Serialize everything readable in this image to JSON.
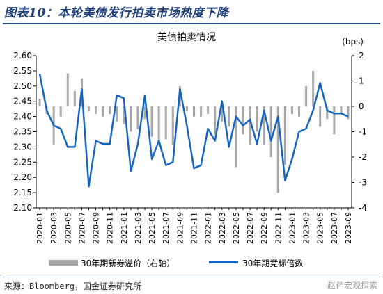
{
  "header": {
    "title": "图表10：本轮美债发行拍卖市场热度下降"
  },
  "footer": {
    "source": "来源：Bloomberg，国金证券研究所",
    "watermark": "赵伟宏观探索"
  },
  "colors": {
    "line": "#1565c0",
    "bar": "#a6a6a6",
    "title": "#1f3f7a",
    "axis": "#000000"
  },
  "chart_data": {
    "type": "bar+line",
    "title": "美债拍卖情况",
    "left_axis": {
      "ylim": [
        2.1,
        2.6
      ],
      "ticks": [
        2.1,
        2.15,
        2.2,
        2.25,
        2.3,
        2.35,
        2.4,
        2.45,
        2.5,
        2.55,
        2.6
      ]
    },
    "right_axis": {
      "unit": "(bps)",
      "ylim": [
        -4,
        2
      ],
      "ticks": [
        -4,
        -3,
        -2,
        -1,
        0,
        1,
        2
      ]
    },
    "x": [
      "2020-01",
      "2020-02",
      "2020-03",
      "2020-04",
      "2020-05",
      "2020-06",
      "2020-07",
      "2020-08",
      "2020-09",
      "2020-10",
      "2020-11",
      "2020-12",
      "2021-01",
      "2021-02",
      "2021-03",
      "2021-04",
      "2021-05",
      "2021-06",
      "2021-07",
      "2021-08",
      "2021-09",
      "2021-10",
      "2021-11",
      "2021-12",
      "2022-01",
      "2022-02",
      "2022-03",
      "2022-04",
      "2022-05",
      "2022-06",
      "2022-07",
      "2022-08",
      "2022-09",
      "2022-10",
      "2022-11",
      "2022-12",
      "2023-01",
      "2023-02",
      "2023-03",
      "2023-04",
      "2023-05",
      "2023-06",
      "2023-07",
      "2023-08",
      "2023-09"
    ],
    "x_tick_labels": [
      "2020-01",
      "2020-03",
      "2020-05",
      "2020-07",
      "2020-09",
      "2020-11",
      "2021-01",
      "2021-03",
      "2021-05",
      "2021-07",
      "2021-09",
      "2021-11",
      "2022-01",
      "2022-03",
      "2022-05",
      "2022-07",
      "2022-09",
      "2022-11",
      "2023-01",
      "2023-03",
      "2023-05",
      "2023-07",
      "2023-09"
    ],
    "series": [
      {
        "name": "30年期新券溢价（右轴）",
        "type": "bar",
        "axis": "right",
        "values": [
          0.3,
          -0.3,
          -1.5,
          -0.4,
          1.3,
          0.6,
          1.1,
          -0.2,
          -0.3,
          -0.4,
          -0.3,
          -0.6,
          -0.7,
          -1.0,
          -0.9,
          -0.5,
          -1.2,
          -1.4,
          -1.3,
          -1.5,
          0.8,
          -0.2,
          -0.4,
          -0.4,
          -0.3,
          -1.1,
          -0.6,
          -0.8,
          -2.4,
          -1.1,
          -1.5,
          -1.0,
          -1.5,
          -2.0,
          -3.4,
          -2.3,
          -0.3,
          -0.4,
          0.8,
          1.4,
          -0.8,
          -0.5,
          -1.1,
          -0.3,
          -0.5
        ]
      },
      {
        "name": "30年期竞标倍数",
        "type": "line",
        "axis": "left",
        "values": [
          2.54,
          2.42,
          2.37,
          2.36,
          2.3,
          2.3,
          2.49,
          2.17,
          2.32,
          2.31,
          2.31,
          2.47,
          2.46,
          2.22,
          2.31,
          2.47,
          2.26,
          2.32,
          2.24,
          2.25,
          2.49,
          2.37,
          2.23,
          2.24,
          2.36,
          2.32,
          2.45,
          2.3,
          2.4,
          2.37,
          2.39,
          2.31,
          2.42,
          2.32,
          2.4,
          2.19,
          2.26,
          2.35,
          2.36,
          2.42,
          2.51,
          2.42,
          2.41,
          2.41,
          2.4
        ]
      }
    ],
    "legend": {
      "placement": "bottom",
      "items": [
        "30年期新券溢价（右轴）",
        "30年期竞标倍数"
      ]
    }
  }
}
